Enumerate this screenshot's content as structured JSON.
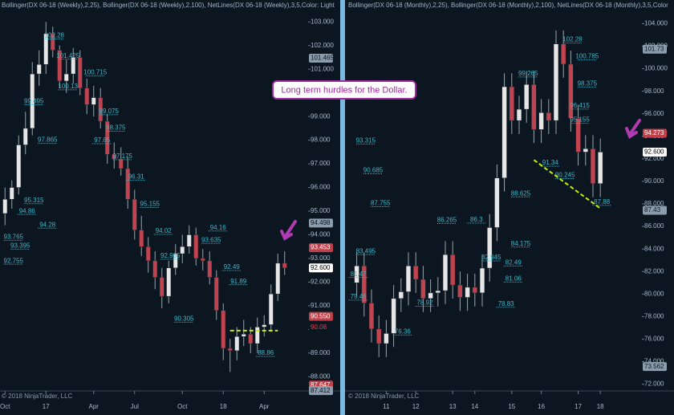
{
  "callout": "Long term hurdles for the Dollar.",
  "chart_data": [
    {
      "type": "candlestick",
      "header": "Bollinger(DX 06-18 (Weekly),2,25), Bollinger(DX 06-18 (Weekly),2,100), NetLines(DX 06-18 (Weekly),3,5,Color: Light",
      "footer": "© 2018 NinjaTrader, LLC",
      "categories": [
        "Oct",
        null,
        null,
        null,
        null,
        null,
        "17",
        null,
        null,
        null,
        null,
        null,
        null,
        "Apr",
        null,
        null,
        null,
        null,
        null,
        "Jul",
        null,
        null,
        null,
        null,
        null,
        null,
        "Oct",
        null,
        null,
        null,
        null,
        null,
        "18",
        null,
        null,
        null,
        null,
        null,
        "Apr",
        null,
        null,
        null
      ],
      "open": [
        94.9,
        95.5,
        96.0,
        97.8,
        98.5,
        100.8,
        101.2,
        102.5,
        101.8,
        100.5,
        100.8,
        101.5,
        100.2,
        99.5,
        99.8,
        98.8,
        97.4,
        97.2,
        96.8,
        95.5,
        94.2,
        93.5,
        92.9,
        92.2,
        91.4,
        92.6,
        93.2,
        93.5,
        94.0,
        93.0,
        92.9,
        92.2,
        90.8,
        89.2,
        89.1,
        89.7,
        89.8,
        89.4,
        90.1,
        90.2,
        91.5,
        92.8
      ],
      "high": [
        96.0,
        96.3,
        98.2,
        99.2,
        101.3,
        101.8,
        103.0,
        102.8,
        102.0,
        101.4,
        101.9,
        101.8,
        100.6,
        100.3,
        100.2,
        99.1,
        97.9,
        97.7,
        97.3,
        95.9,
        94.8,
        93.9,
        93.3,
        92.6,
        92.9,
        93.6,
        94.0,
        94.4,
        94.3,
        93.4,
        93.3,
        92.5,
        91.1,
        89.6,
        90.1,
        90.4,
        90.1,
        90.5,
        90.6,
        91.9,
        93.2,
        93.3
      ],
      "low": [
        94.4,
        95.1,
        95.7,
        97.4,
        98.2,
        100.3,
        100.8,
        101.5,
        100.2,
        100.0,
        100.4,
        99.9,
        99.1,
        99.0,
        98.5,
        97.0,
        96.8,
        96.5,
        95.1,
        93.8,
        93.1,
        92.4,
        91.7,
        90.9,
        91.1,
        92.3,
        92.8,
        93.2,
        92.7,
        92.5,
        91.9,
        90.4,
        88.7,
        88.2,
        88.7,
        89.3,
        89.0,
        89.0,
        89.7,
        89.9,
        91.2,
        92.3
      ],
      "close": [
        95.5,
        96.0,
        97.8,
        98.5,
        100.8,
        101.2,
        102.5,
        101.8,
        100.5,
        100.8,
        101.5,
        100.2,
        99.5,
        99.8,
        98.8,
        97.4,
        97.2,
        96.8,
        95.5,
        94.2,
        93.5,
        92.9,
        92.2,
        91.4,
        92.6,
        93.2,
        93.5,
        94.0,
        93.0,
        92.9,
        92.2,
        90.8,
        89.2,
        89.1,
        89.7,
        89.8,
        89.4,
        90.1,
        90.2,
        91.5,
        92.8,
        92.6
      ],
      "up_color": "#e6e6e6",
      "down_color": "#c0444f",
      "ylim": [
        87.4,
        103.45
      ],
      "yticks": [
        {
          "value": 103,
          "label": "103.000"
        },
        {
          "value": 102,
          "label": "102.000"
        },
        {
          "value": 101,
          "label": "101.000"
        },
        {
          "value": 100,
          "label": "100.000"
        },
        {
          "value": 99,
          "label": "99.000"
        },
        {
          "value": 98,
          "label": "98.000"
        },
        {
          "value": 97,
          "label": "97.000"
        },
        {
          "value": 96,
          "label": "96.000"
        },
        {
          "value": 95,
          "label": "95.000"
        },
        {
          "value": 94,
          "label": "94.000"
        },
        {
          "value": 93,
          "label": "93.000"
        },
        {
          "value": 92,
          "label": "92.000"
        },
        {
          "value": 91,
          "label": "91.000"
        },
        {
          "value": 90,
          "label": "90.000"
        },
        {
          "value": 89,
          "label": "89.000"
        },
        {
          "value": 88,
          "label": "88.000"
        }
      ],
      "level_labels": [
        {
          "x": 7,
          "value": 102.28,
          "label": "102.28"
        },
        {
          "x": 9,
          "value": 101.425,
          "label": "101.425"
        },
        {
          "x": 13,
          "value": 100.715,
          "label": "100.715"
        },
        {
          "x": 9,
          "value": 100.13,
          "label": "100.13"
        },
        {
          "x": 4,
          "value": 99.495,
          "label": "99.495"
        },
        {
          "x": 15,
          "value": 99.075,
          "label": "99.075"
        },
        {
          "x": 16,
          "value": 98.375,
          "label": "98.375"
        },
        {
          "x": 6,
          "value": 97.865,
          "label": "97.865"
        },
        {
          "x": 14,
          "value": 97.85,
          "label": "97.85"
        },
        {
          "x": 17,
          "value": 97.175,
          "label": "97.175"
        },
        {
          "x": 19,
          "value": 96.31,
          "label": "96.31"
        },
        {
          "x": 4,
          "value": 95.315,
          "label": "95.315"
        },
        {
          "x": 21,
          "value": 95.155,
          "label": "95.155"
        },
        {
          "x": 3,
          "value": 94.86,
          "label": "94.86"
        },
        {
          "x": 6,
          "value": 94.28,
          "label": "94.28"
        },
        {
          "x": 23,
          "value": 94.02,
          "label": "94.02"
        },
        {
          "x": 31,
          "value": 94.16,
          "label": "94.16"
        },
        {
          "x": 1,
          "value": 93.765,
          "label": "93.765"
        },
        {
          "x": 30,
          "value": 93.635,
          "label": "93.635"
        },
        {
          "x": 2,
          "value": 93.395,
          "label": "93.395"
        },
        {
          "x": 1,
          "value": 92.755,
          "label": "92.755"
        },
        {
          "x": 24,
          "value": 92.965,
          "label": "92.965"
        },
        {
          "x": 33,
          "value": 92.49,
          "label": "92.49"
        },
        {
          "x": 34,
          "value": 91.89,
          "label": "91.89"
        },
        {
          "x": 26,
          "value": 90.305,
          "label": "90.305"
        },
        {
          "x": 38,
          "value": 88.86,
          "label": "88.86"
        }
      ],
      "price_tags": [
        {
          "value": 101.465,
          "label": "101.465",
          "bg": "#8c9cac",
          "fg": "#0b1620"
        },
        {
          "value": 94.498,
          "label": "94.498",
          "bg": "#8c9cac",
          "fg": "#0b1620"
        },
        {
          "value": 93.453,
          "label": "93.453",
          "bg": "#c0404a",
          "fg": "#ffffff"
        },
        {
          "value": 92.6,
          "label": "92.600",
          "bg": "#ffffff",
          "fg": "#000000"
        },
        {
          "value": 90.55,
          "label": "90.550",
          "bg": "#c0404a",
          "fg": "#ffffff"
        },
        {
          "value": 90.08,
          "label": "90.08",
          "bg": "#0b1620",
          "fg": "#e04050"
        },
        {
          "value": 87.647,
          "label": "87.647",
          "bg": "#c0404a",
          "fg": "#ffffff"
        },
        {
          "value": 87.412,
          "label": "87.412",
          "bg": "#8c9cac",
          "fg": "#0b1620"
        }
      ],
      "trendlines": [
        {
          "x": [
            33,
            40
          ],
          "y": [
            89.95,
            89.95
          ],
          "color": "#c8f000"
        }
      ]
    },
    {
      "type": "candlestick",
      "header": "Bollinger(DX 06-18 (Monthly),2,25), Bollinger(DX 06-18 (Monthly),2,100), NetLines(DX 06-18 (Monthly),3,5,Color",
      "footer": "© 2018 NinjaTrader, LLC",
      "categories": [
        null,
        null,
        null,
        null,
        "11",
        null,
        null,
        null,
        "12",
        null,
        null,
        null,
        null,
        "13",
        null,
        null,
        "14",
        null,
        null,
        null,
        null,
        "15",
        null,
        null,
        null,
        "16",
        null,
        null,
        null,
        null,
        "17",
        null,
        null,
        "18"
      ],
      "open": [
        81.0,
        82.5,
        79.2,
        76.9,
        75.6,
        76.5,
        79.6,
        80.2,
        82.5,
        81.3,
        79.6,
        80.1,
        80.3,
        83.5,
        80.8,
        79.7,
        80.6,
        80.1,
        82.3,
        85.9,
        90.3,
        98.4,
        95.4,
        96.4,
        98.6,
        94.6,
        96.1,
        95.4,
        102.2,
        100.4,
        95.6,
        92.6,
        92.9,
        89.8
      ],
      "high": [
        83.7,
        83.7,
        80.4,
        78.1,
        77.7,
        80.8,
        81.4,
        83.7,
        83.7,
        82.5,
        81.3,
        81.5,
        84.7,
        84.7,
        82.0,
        81.8,
        81.8,
        83.5,
        87.1,
        91.5,
        99.6,
        99.6,
        97.6,
        99.8,
        99.8,
        97.3,
        97.3,
        103.4,
        103.4,
        101.6,
        96.8,
        94.1,
        94.1,
        93.8
      ],
      "low": [
        79.8,
        78.0,
        75.7,
        74.4,
        74.4,
        75.3,
        78.4,
        79.0,
        80.1,
        78.4,
        78.4,
        78.9,
        79.1,
        79.6,
        78.5,
        78.5,
        78.9,
        78.9,
        81.1,
        84.7,
        89.1,
        94.2,
        94.2,
        95.2,
        93.4,
        93.4,
        94.2,
        94.2,
        99.2,
        94.4,
        91.4,
        91.4,
        88.6,
        88.6
      ],
      "close": [
        82.5,
        79.2,
        76.9,
        75.6,
        76.5,
        79.6,
        80.2,
        82.5,
        81.3,
        79.6,
        80.1,
        80.3,
        83.5,
        80.8,
        79.7,
        80.6,
        80.1,
        82.3,
        85.9,
        90.3,
        98.4,
        95.4,
        96.4,
        98.6,
        94.6,
        96.1,
        95.4,
        102.2,
        100.4,
        95.6,
        92.6,
        92.9,
        89.8,
        92.6
      ],
      "up_color": "#e6e6e6",
      "down_color": "#c0444f",
      "ylim": [
        71.4,
        105.1
      ],
      "yticks": [
        {
          "value": 104,
          "label": "104.000"
        },
        {
          "value": 102,
          "label": "102.000"
        },
        {
          "value": 100,
          "label": "100.000"
        },
        {
          "value": 98,
          "label": "98.000"
        },
        {
          "value": 96,
          "label": "96.000"
        },
        {
          "value": 94,
          "label": "94.000"
        },
        {
          "value": 92,
          "label": "92.000"
        },
        {
          "value": 90,
          "label": "90.000"
        },
        {
          "value": 88,
          "label": "88.000"
        },
        {
          "value": 86,
          "label": "86.000"
        },
        {
          "value": 84,
          "label": "84.000"
        },
        {
          "value": 82,
          "label": "82.000"
        },
        {
          "value": 80,
          "label": "80.000"
        },
        {
          "value": 78,
          "label": "78.000"
        },
        {
          "value": 76,
          "label": "76.000"
        },
        {
          "value": 74,
          "label": "74.000"
        },
        {
          "value": 72,
          "label": "72.000"
        }
      ],
      "level_labels": [
        {
          "x": 29,
          "value": 102.28,
          "label": "102.28"
        },
        {
          "x": 31,
          "value": 100.785,
          "label": "100.785"
        },
        {
          "x": 31,
          "value": 98.375,
          "label": "98.375"
        },
        {
          "x": 23,
          "value": 99.265,
          "label": "99.265"
        },
        {
          "x": 30,
          "value": 96.415,
          "label": "96.415"
        },
        {
          "x": 30,
          "value": 95.155,
          "label": "95.155"
        },
        {
          "x": 1,
          "value": 93.315,
          "label": "93.315"
        },
        {
          "x": 26,
          "value": 91.34,
          "label": "91.34"
        },
        {
          "x": 28,
          "value": 90.245,
          "label": "90.245"
        },
        {
          "x": 2,
          "value": 90.685,
          "label": "90.685"
        },
        {
          "x": 3,
          "value": 87.755,
          "label": "87.755"
        },
        {
          "x": 22,
          "value": 88.625,
          "label": "88.625"
        },
        {
          "x": 12,
          "value": 86.265,
          "label": "86.265"
        },
        {
          "x": 16,
          "value": 86.3,
          "label": "86.3"
        },
        {
          "x": 22,
          "value": 84.175,
          "label": "84.175"
        },
        {
          "x": 1,
          "value": 83.495,
          "label": "83.495"
        },
        {
          "x": 18,
          "value": 82.945,
          "label": "82.945"
        },
        {
          "x": 21,
          "value": 82.49,
          "label": "82.49"
        },
        {
          "x": 0,
          "value": 81.47,
          "label": "81.47"
        },
        {
          "x": 21,
          "value": 81.06,
          "label": "81.06"
        },
        {
          "x": 0,
          "value": 79.46,
          "label": "79.46"
        },
        {
          "x": 9,
          "value": 78.92,
          "label": "78.92"
        },
        {
          "x": 20,
          "value": 78.83,
          "label": "78.83"
        },
        {
          "x": 6,
          "value": 76.36,
          "label": "76.36"
        },
        {
          "x": 33,
          "value": 87.88,
          "label": "87.88"
        }
      ],
      "price_tags": [
        {
          "value": 101.73,
          "label": "101.73",
          "bg": "#8c9cac",
          "fg": "#0b1620"
        },
        {
          "value": 94.273,
          "label": "94.273",
          "bg": "#c0404a",
          "fg": "#ffffff"
        },
        {
          "value": 92.6,
          "label": "92.600",
          "bg": "#ffffff",
          "fg": "#000000"
        },
        {
          "value": 87.43,
          "label": "87.43",
          "bg": "#8c9cac",
          "fg": "#0b1620"
        },
        {
          "value": 73.562,
          "label": "73.562",
          "bg": "#8c9cac",
          "fg": "#0b1620"
        }
      ],
      "trendlines": [
        {
          "x": [
            24,
            33
          ],
          "y": [
            91.9,
            87.6
          ],
          "color": "#c8f000"
        }
      ]
    }
  ]
}
